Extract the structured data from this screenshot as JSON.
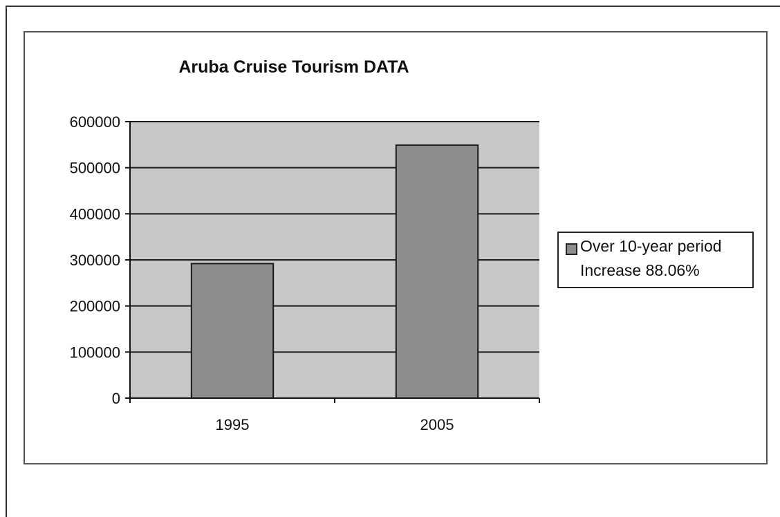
{
  "chart_data": {
    "type": "bar",
    "title": "Aruba Cruise Tourism DATA",
    "categories": [
      "1995",
      "2005"
    ],
    "series": [
      {
        "name": "Over 10-year period Increase 88.06%",
        "values": [
          292000,
          549000
        ]
      }
    ],
    "ylim": [
      0,
      600000
    ],
    "yticks": [
      "0",
      "100000",
      "200000",
      "300000",
      "400000",
      "500000",
      "600000"
    ],
    "xlabel": "",
    "ylabel": "",
    "grid": true,
    "legend_position": "right",
    "legend_lines": [
      "Over 10-year period",
      "Increase 88.06%"
    ],
    "colors": {
      "bar": "#8d8d8d",
      "plot_bg": "#c8c8c8",
      "gridline": "#1a1a1a"
    }
  }
}
